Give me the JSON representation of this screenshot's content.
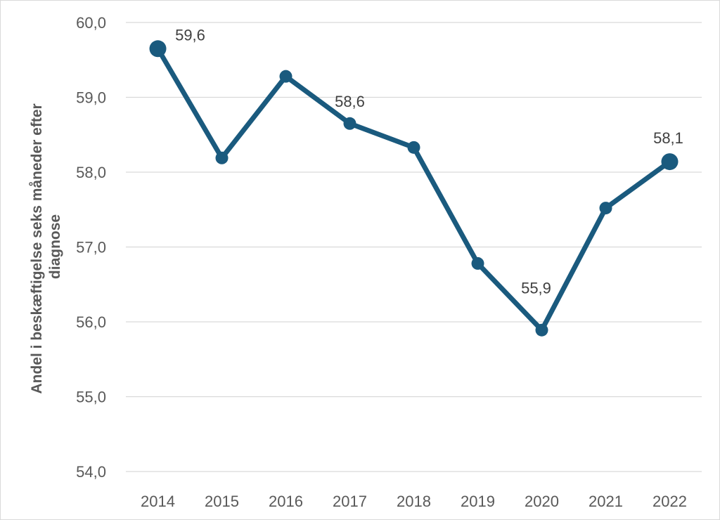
{
  "chart_data": {
    "type": "line",
    "title": "",
    "xlabel": "",
    "ylabel_lines": [
      "Andel  i beskæftigelse seks måneder efter",
      "diagnose"
    ],
    "categories": [
      "2014",
      "2015",
      "2016",
      "2017",
      "2018",
      "2019",
      "2020",
      "2021",
      "2022"
    ],
    "series": [
      {
        "values": [
          59.65,
          58.19,
          59.28,
          58.65,
          58.33,
          56.78,
          55.89,
          57.52,
          58.14
        ],
        "color": "#1a5a7e"
      }
    ],
    "ylim": [
      54.0,
      60.0
    ],
    "yticks": [
      {
        "value": 60.0,
        "label": "60,0"
      },
      {
        "value": 59.0,
        "label": "59,0"
      },
      {
        "value": 58.0,
        "label": "58,0"
      },
      {
        "value": 57.0,
        "label": "57,0"
      },
      {
        "value": 56.0,
        "label": "56,0"
      },
      {
        "value": 55.0,
        "label": "55,0"
      },
      {
        "value": 54.0,
        "label": "54,0"
      }
    ],
    "data_labels": [
      {
        "category": "2014",
        "label": "59,6"
      },
      {
        "category": "2017",
        "label": "58,6"
      },
      {
        "category": "2020",
        "label": "55,9"
      },
      {
        "category": "2022",
        "label": "58,1"
      }
    ],
    "highlighted_points": [
      "2014",
      "2022"
    ],
    "grid": true,
    "legend": "none"
  }
}
